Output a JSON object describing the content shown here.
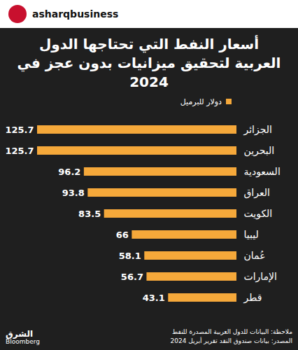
{
  "header": {
    "account": "asharqbusiness"
  },
  "chart_data": {
    "type": "bar",
    "orientation": "horizontal",
    "title": "أسعار النفط التي تحتاجها الدول العربية لتحقيق ميزانيات بدون عجز في 2024",
    "categories": [
      "الجزائر",
      "البحرين",
      "السعودية",
      "العراق",
      "الكويت",
      "ليبيا",
      "عُمان",
      "الإمارات",
      "قطر"
    ],
    "series": [
      {
        "name": "دولار للبرميل",
        "color": "#f5a83a",
        "values": [
          125.7,
          125.7,
          96.2,
          93.8,
          83.5,
          66,
          58.1,
          56.7,
          43.1
        ]
      }
    ],
    "xlim": [
      0,
      125.7
    ],
    "tick_labels": "y",
    "data_labels": true,
    "legend": "top",
    "notes": [
      "ملاحظة: البيانات للدول العربية المصدرة للنفط",
      "المصدر: بيانات صندوق النقد تقرير أبريل 2024"
    ]
  },
  "logo": [
    "الشرق",
    "Bloomberg"
  ]
}
